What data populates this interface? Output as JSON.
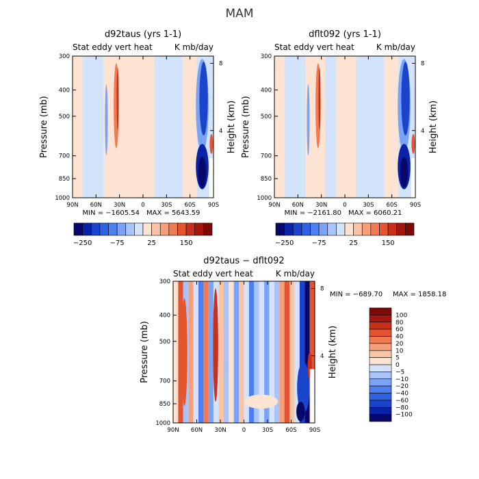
{
  "season": "MAM",
  "chart_data": [
    {
      "type": "heatmap",
      "title": "d92taus (yrs 1-1)",
      "subtitle_left": "Stat eddy vert heat",
      "subtitle_right": "K mb/day",
      "xlabel": "",
      "ylabel": "Pressure (mb)",
      "y2label": "Height (km)",
      "x_ticks": [
        "90N",
        "60N",
        "30N",
        "0",
        "30S",
        "60S",
        "90S"
      ],
      "y_ticks": [
        "300",
        "400",
        "500",
        "700",
        "850",
        "1000"
      ],
      "y2_ticks": [
        "8",
        "4"
      ],
      "min_text": "MIN = −1605.54",
      "max_text": "MAX = 5643.59",
      "colorbar_labels": [
        "−250",
        "−75",
        "25",
        "150"
      ],
      "colorbar_orientation": "horizontal",
      "colors": [
        "#08086b",
        "#0a22a8",
        "#1a44cc",
        "#2e62e0",
        "#4d7ff0",
        "#7aa2f5",
        "#a9c4fa",
        "#d2e3fb",
        "#fde3d2",
        "#f9c3a5",
        "#f5a07a",
        "#f07a53",
        "#e35430",
        "#c7301b",
        "#a3170f",
        "#7e0a08"
      ]
    },
    {
      "type": "heatmap",
      "title": "dflt092 (yrs 1-1)",
      "subtitle_left": "Stat eddy vert heat",
      "subtitle_right": "K mb/day",
      "xlabel": "",
      "ylabel": "Pressure (mb)",
      "y2label": "Height (km)",
      "x_ticks": [
        "90N",
        "60N",
        "30N",
        "0",
        "30S",
        "60S",
        "90S"
      ],
      "y_ticks": [
        "300",
        "400",
        "500",
        "700",
        "850",
        "1000"
      ],
      "y2_ticks": [
        "8",
        "4"
      ],
      "min_text": "MIN = −2161.80",
      "max_text": "MAX = 6060.21",
      "colorbar_labels": [
        "−250",
        "−75",
        "25",
        "150"
      ],
      "colorbar_orientation": "horizontal",
      "colors": [
        "#08086b",
        "#0a22a8",
        "#1a44cc",
        "#2e62e0",
        "#4d7ff0",
        "#7aa2f5",
        "#a9c4fa",
        "#d2e3fb",
        "#fde3d2",
        "#f9c3a5",
        "#f5a07a",
        "#f07a53",
        "#e35430",
        "#c7301b",
        "#a3170f",
        "#7e0a08"
      ]
    },
    {
      "type": "heatmap",
      "title": "d92taus − dflt092",
      "subtitle_left": "Stat eddy vert heat",
      "subtitle_right": "K mb/day",
      "xlabel": "",
      "ylabel": "Pressure (mb)",
      "y2label": "Height (km)",
      "x_ticks": [
        "90N",
        "60N",
        "30N",
        "0",
        "30S",
        "60S",
        "90S"
      ],
      "y_ticks": [
        "300",
        "400",
        "500",
        "700",
        "850",
        "1000"
      ],
      "y2_ticks": [
        "8",
        "4"
      ],
      "min_text": "MIN = −689.70",
      "max_text": "MAX = 1858.18",
      "colorbar_labels": [
        "100",
        "80",
        "60",
        "40",
        "20",
        "10",
        "5",
        "0",
        "−5",
        "−10",
        "−20",
        "−40",
        "−60",
        "−80",
        "−100"
      ],
      "colorbar_orientation": "vertical",
      "colors": [
        "#7e0a08",
        "#a3170f",
        "#c7301b",
        "#e35430",
        "#f07a53",
        "#f5a07a",
        "#f9c3a5",
        "#fde3d2",
        "#d2e3fb",
        "#a9c4fa",
        "#7aa2f5",
        "#4d7ff0",
        "#2e62e0",
        "#1a44cc",
        "#0a22a8",
        "#08086b"
      ]
    }
  ]
}
